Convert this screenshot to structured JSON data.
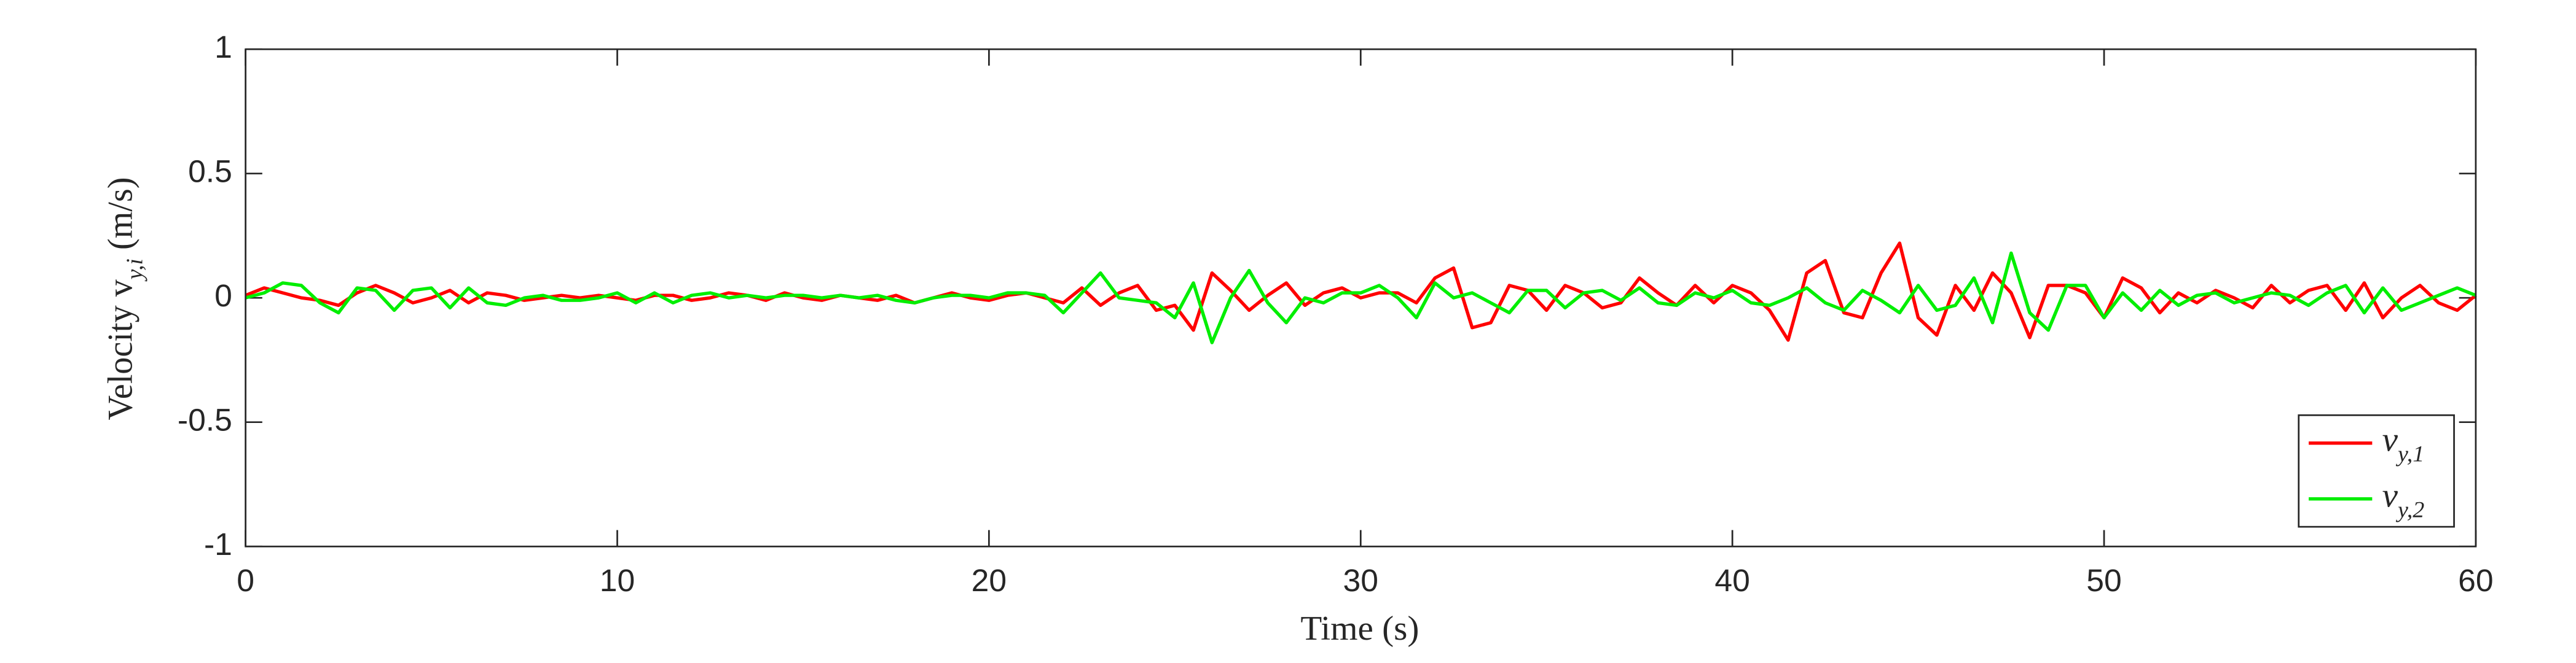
{
  "chart_data": {
    "type": "line",
    "xlabel": "Time (s)",
    "ylabel": "Velocity v_{y,i} (m/s)",
    "xlim": [
      0,
      60
    ],
    "ylim": [
      -1,
      1
    ],
    "xticks": [
      0,
      10,
      20,
      30,
      40,
      50,
      60
    ],
    "yticks": [
      -1,
      -0.5,
      0,
      0.5,
      1
    ],
    "legend": "lower right",
    "x": [
      0,
      0.5,
      1,
      1.5,
      2,
      2.5,
      3,
      3.5,
      4,
      4.5,
      5,
      5.5,
      6,
      6.5,
      7,
      7.5,
      8,
      8.5,
      9,
      9.5,
      10,
      10.5,
      11,
      11.5,
      12,
      12.5,
      13,
      13.5,
      14,
      14.5,
      15,
      15.5,
      16,
      16.5,
      17,
      17.5,
      18,
      18.5,
      19,
      19.5,
      20,
      20.5,
      21,
      21.5,
      22,
      22.5,
      23,
      23.5,
      24,
      24.5,
      25,
      25.5,
      26,
      26.5,
      27,
      27.5,
      28,
      28.5,
      29,
      29.5,
      30,
      30.5,
      31,
      31.5,
      32,
      32.5,
      33,
      33.5,
      34,
      34.5,
      35,
      35.5,
      36,
      36.5,
      37,
      37.5,
      38,
      38.5,
      39,
      39.5,
      40,
      40.5,
      41,
      41.5,
      42,
      42.5,
      43,
      43.5,
      44,
      44.5,
      45,
      45.5,
      46,
      46.5,
      47,
      47.5,
      48,
      48.5,
      49,
      49.5,
      50,
      50.5,
      51,
      51.5,
      52,
      52.5,
      53,
      53.5,
      54,
      54.5,
      55,
      55.5,
      56,
      56.5,
      57,
      57.5,
      58,
      58.5,
      59,
      59.5,
      60
    ],
    "series": [
      {
        "name": "v_{y,1}",
        "color": "#ff0000",
        "values": [
          0.01,
          0.04,
          0.02,
          0.0,
          -0.01,
          -0.03,
          0.02,
          0.05,
          0.02,
          -0.02,
          0.0,
          0.03,
          -0.02,
          0.02,
          0.01,
          -0.01,
          0.0,
          0.01,
          0.0,
          0.01,
          0.0,
          -0.01,
          0.01,
          0.01,
          -0.01,
          0.0,
          0.02,
          0.01,
          -0.01,
          0.02,
          0.0,
          -0.01,
          0.01,
          0.0,
          -0.01,
          0.01,
          -0.02,
          0.0,
          0.02,
          0.0,
          -0.01,
          0.01,
          0.02,
          0.0,
          -0.02,
          0.04,
          -0.03,
          0.02,
          0.05,
          -0.05,
          -0.03,
          -0.13,
          0.1,
          0.03,
          -0.05,
          0.01,
          0.06,
          -0.03,
          0.02,
          0.04,
          0.0,
          0.02,
          0.02,
          -0.02,
          0.08,
          0.12,
          -0.12,
          -0.1,
          0.05,
          0.03,
          -0.05,
          0.05,
          0.02,
          -0.04,
          -0.02,
          0.08,
          0.02,
          -0.03,
          0.05,
          -0.02,
          0.05,
          0.02,
          -0.05,
          -0.17,
          0.1,
          0.15,
          -0.06,
          -0.08,
          0.1,
          0.22,
          -0.08,
          -0.15,
          0.05,
          -0.05,
          0.1,
          0.02,
          -0.16,
          0.05,
          0.05,
          0.02,
          -0.08,
          0.08,
          0.04,
          -0.06,
          0.02,
          -0.02,
          0.03,
          0.0,
          -0.04,
          0.05,
          -0.02,
          0.03,
          0.05,
          -0.05,
          0.06,
          -0.08,
          0.0,
          0.05,
          -0.02,
          -0.05,
          0.01
        ]
      },
      {
        "name": "v_{y,2}",
        "color": "#00ee00",
        "values": [
          0.0,
          0.02,
          0.06,
          0.05,
          -0.02,
          -0.06,
          0.04,
          0.03,
          -0.05,
          0.03,
          0.04,
          -0.04,
          0.04,
          -0.02,
          -0.03,
          0.0,
          0.01,
          -0.01,
          -0.01,
          0.0,
          0.02,
          -0.02,
          0.02,
          -0.02,
          0.01,
          0.02,
          0.0,
          0.01,
          0.0,
          0.01,
          0.01,
          0.0,
          0.01,
          0.0,
          0.01,
          -0.01,
          -0.02,
          0.0,
          0.01,
          0.01,
          0.0,
          0.02,
          0.02,
          0.01,
          -0.06,
          0.02,
          0.1,
          0.0,
          -0.01,
          -0.02,
          -0.08,
          0.06,
          -0.18,
          0.0,
          0.11,
          -0.02,
          -0.1,
          0.0,
          -0.02,
          0.02,
          0.02,
          0.05,
          0.0,
          -0.08,
          0.06,
          0.0,
          0.02,
          -0.02,
          -0.06,
          0.03,
          0.03,
          -0.04,
          0.02,
          0.03,
          -0.01,
          0.04,
          -0.02,
          -0.03,
          0.02,
          0.0,
          0.03,
          -0.02,
          -0.03,
          0.0,
          0.04,
          -0.02,
          -0.05,
          0.03,
          -0.01,
          -0.06,
          0.05,
          -0.05,
          -0.03,
          0.08,
          -0.1,
          0.18,
          -0.06,
          -0.13,
          0.05,
          0.05,
          -0.08,
          0.02,
          -0.05,
          0.03,
          -0.03,
          0.01,
          0.02,
          -0.02,
          0.0,
          0.02,
          0.01,
          -0.03,
          0.02,
          0.05,
          -0.06,
          0.04,
          -0.05,
          -0.02,
          0.01,
          0.04,
          0.01
        ]
      }
    ]
  }
}
